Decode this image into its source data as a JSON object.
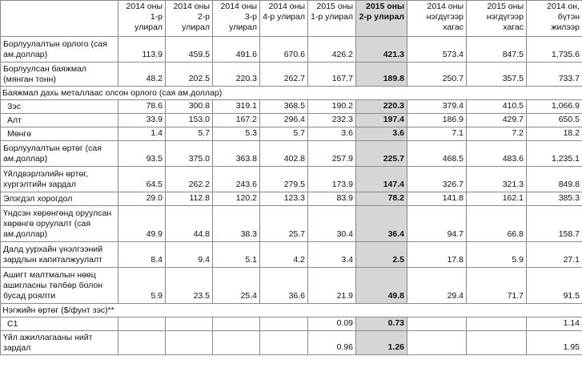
{
  "headers": [
    "",
    "2014 оны 1-р улирал",
    "2014 оны 2-р улирал",
    "2014 оны 3-р улирал",
    "2014 оны 4-р улирал",
    "2015 оны 1-р улирал",
    "2015 оны 2-р улирал",
    "2014 оны нэгдүгээр хагас",
    "2015 оны нэгдүгээр хагас",
    "2014 он, бүтэн жилээр"
  ],
  "rows": [
    {
      "label": "Борлуулалтын орлого (сая ам.доллар)",
      "values": [
        "113.9",
        "459.5",
        "491.6",
        "670.6",
        "426.2",
        "421.3",
        "573.4",
        "847.5",
        "1,735.6"
      ]
    },
    {
      "label": "Борлуулсан баяжмал (мянган тонн)",
      "values": [
        "48.2",
        "202.5",
        "220.3",
        "262.7",
        "167.7",
        "189.8",
        "250.7",
        "357.5",
        "733.7"
      ]
    },
    {
      "label": "Баяжмал дахь металлаас олсон орлого (сая ам.доллар)",
      "section": true
    },
    {
      "label": "Зэс",
      "values": [
        "78.6",
        "300.8",
        "319.1",
        "368.5",
        "190.2",
        "220.3",
        "379.4",
        "410.5",
        "1,066.9"
      ]
    },
    {
      "label": "Алт",
      "values": [
        "33.9",
        "153.0",
        "167.2",
        "296.4",
        "232.3",
        "197.4",
        "186.9",
        "429.7",
        "650.5"
      ]
    },
    {
      "label": "Мөнгө",
      "values": [
        "1.4",
        "5.7",
        "5.3",
        "5.7",
        "3.6",
        "3.6",
        "7.1",
        "7.2",
        "18.2"
      ]
    },
    {
      "label": "Борлуулалтын өртөг (сая ам.доллар)",
      "values": [
        "93.5",
        "375.0",
        "363.8",
        "402.8",
        "257.9",
        "225.7",
        "468.5",
        "483.6",
        "1,235.1"
      ]
    },
    {
      "label": "Үйлдвэрлэлийн өртөг, хүргэлтийн зардал",
      "values": [
        "64.5",
        "262.2",
        "243.6",
        "279.5",
        "173.9",
        "147.4",
        "326.7",
        "321.3",
        "849.8"
      ]
    },
    {
      "label": "Элэгдэл хорогдол",
      "values": [
        "29.0",
        "112.8",
        "120.2",
        "123.3",
        "83.9",
        "78.2",
        "141.8",
        "162.1",
        "385.3"
      ]
    },
    {
      "label": "Үндсэн хөрөнгөнд оруулсан хөрөнгө оруулалт (сая ам.доллар)",
      "values": [
        "49.9",
        "44.8",
        "38.3",
        "25.7",
        "30.4",
        "36.4",
        "94.7",
        "66.8",
        "158.7"
      ]
    },
    {
      "label": "Далд уурхайн үнэлгээний зардлын капиталжуулалт",
      "values": [
        "8.4",
        "9.4",
        "5.1",
        "4.2",
        "3.4",
        "2.5",
        "17.8",
        "5.9",
        "27.1"
      ]
    },
    {
      "label": "Ашигт малтмалын нөөц ашигласны төлбөр болон бусад роялти",
      "values": [
        "5.9",
        "23.5",
        "25.4",
        "36.6",
        "21.9",
        "49.8",
        "29.4",
        "71.7",
        "91.5"
      ]
    },
    {
      "label": "Нэгжийн өртөг ($/фунт зэс)**",
      "section": true
    },
    {
      "label": "C1",
      "values": [
        "",
        "",
        "",
        "",
        "0.09",
        "0.73",
        "",
        "",
        "1.14"
      ]
    },
    {
      "label": "Үйл ажиллагааны нийт зардал",
      "values": [
        "",
        "",
        "",
        "",
        "0.96",
        "1.26",
        "",
        "",
        "1.95"
      ]
    }
  ]
}
